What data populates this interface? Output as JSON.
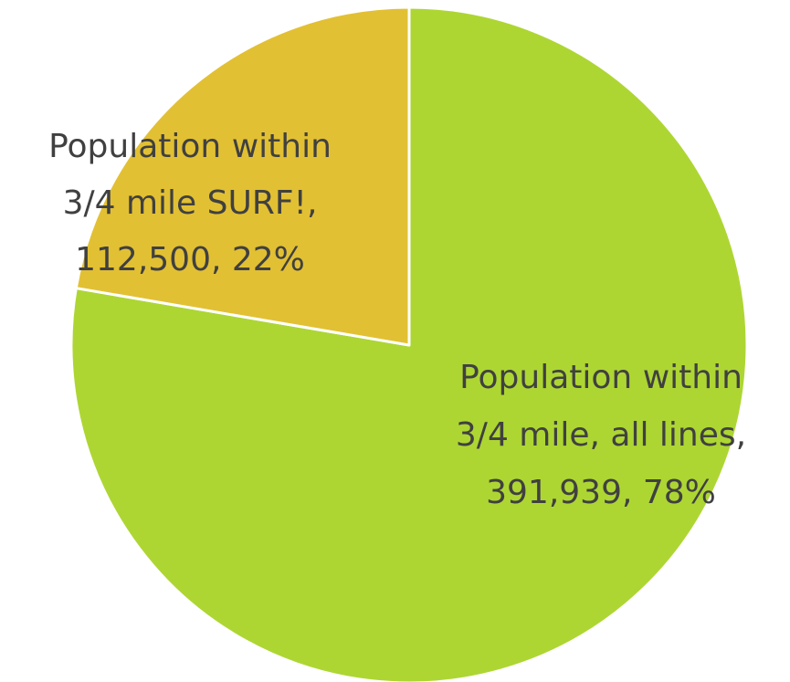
{
  "chart_data": {
    "type": "pie",
    "title": "",
    "start_angle_deg": 0,
    "direction": "clockwise",
    "slices": [
      {
        "name": "Population within 3/4 mile, all lines",
        "value": 391939,
        "percent": 78,
        "color": "#add633",
        "label_lines": [
          "Population within",
          "3/4 mile, all lines,",
          "391,939, 78%"
        ]
      },
      {
        "name": "Population within 3/4 mile SURF!",
        "value": 112500,
        "percent": 22,
        "color": "#e2c033",
        "label_lines": [
          "Population within",
          "3/4 mile SURF!,",
          "112,500, 22%"
        ]
      }
    ],
    "separator_color": "#ffffff",
    "label_color": "#404040"
  }
}
